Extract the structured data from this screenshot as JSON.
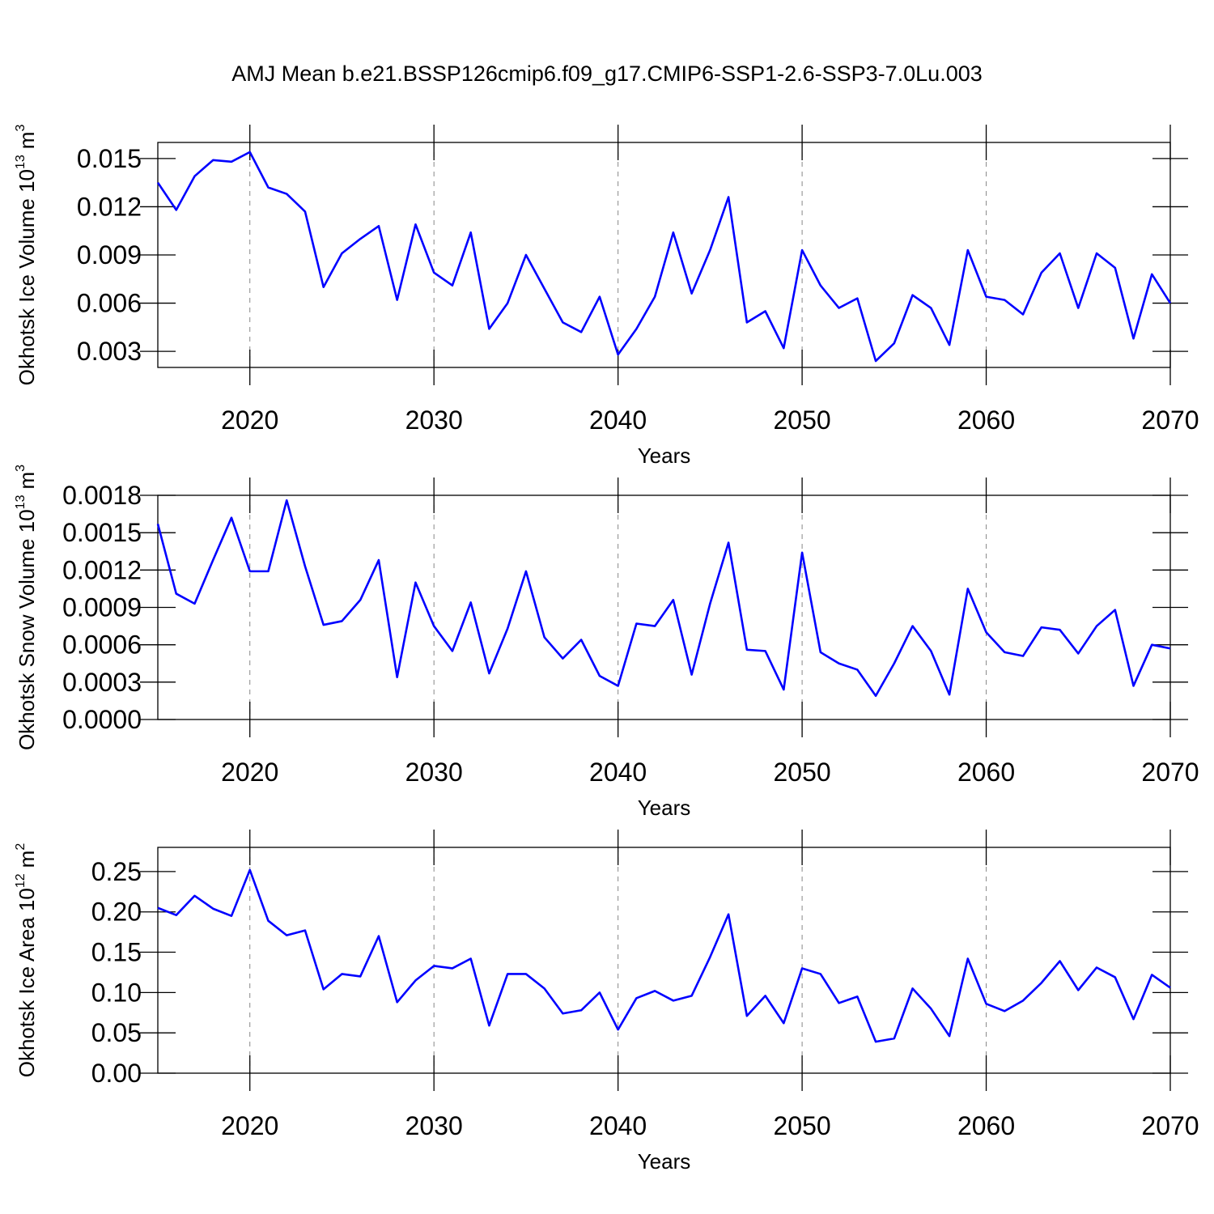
{
  "title": "AMJ Mean b.e21.BSSP126cmip6.f09_g17.CMIP6-SSP1-2.6-SSP3-7.0Lu.003",
  "chart_data": [
    {
      "type": "line",
      "ylabel": {
        "text": "Okhotsk Ice Volume 10",
        "exponent": "13",
        "unit": "m",
        "unit_exponent": "3"
      },
      "xlabel": "Years",
      "x": [
        2015,
        2016,
        2017,
        2018,
        2019,
        2020,
        2021,
        2022,
        2023,
        2024,
        2025,
        2026,
        2027,
        2028,
        2029,
        2030,
        2031,
        2032,
        2033,
        2034,
        2035,
        2036,
        2037,
        2038,
        2039,
        2040,
        2041,
        2042,
        2043,
        2044,
        2045,
        2046,
        2047,
        2048,
        2049,
        2050,
        2051,
        2052,
        2053,
        2054,
        2055,
        2056,
        2057,
        2058,
        2059,
        2060,
        2061,
        2062,
        2063,
        2064,
        2065,
        2066,
        2067,
        2068,
        2069,
        2070
      ],
      "values": [
        0.0135,
        0.0118,
        0.0139,
        0.0149,
        0.0148,
        0.0154,
        0.0132,
        0.0128,
        0.0117,
        0.007,
        0.0091,
        0.01,
        0.0108,
        0.0062,
        0.0109,
        0.0079,
        0.0071,
        0.0104,
        0.0044,
        0.006,
        0.009,
        0.0069,
        0.0048,
        0.0042,
        0.0064,
        0.0028,
        0.0044,
        0.0064,
        0.0104,
        0.0066,
        0.0093,
        0.0126,
        0.0048,
        0.0055,
        0.0032,
        0.0093,
        0.0071,
        0.0057,
        0.0063,
        0.0024,
        0.0035,
        0.0065,
        0.0057,
        0.0034,
        0.0093,
        0.0064,
        0.0062,
        0.0053,
        0.0079,
        0.0091,
        0.0057,
        0.0091,
        0.0082,
        0.0038,
        0.0078,
        0.006
      ],
      "color": "#0000ff",
      "xlim": [
        2015,
        2070
      ],
      "xticks": [
        2020,
        2030,
        2040,
        2050,
        2060,
        2070
      ],
      "ylim": [
        0.002,
        0.016
      ],
      "yticks": [
        0.003,
        0.006,
        0.009,
        0.012,
        0.015
      ],
      "grid": true
    },
    {
      "type": "line",
      "ylabel": {
        "text": "Okhotsk Snow Volume 10",
        "exponent": "13",
        "unit": "m",
        "unit_exponent": "3"
      },
      "xlabel": "Years",
      "x": [
        2015,
        2016,
        2017,
        2018,
        2019,
        2020,
        2021,
        2022,
        2023,
        2024,
        2025,
        2026,
        2027,
        2028,
        2029,
        2030,
        2031,
        2032,
        2033,
        2034,
        2035,
        2036,
        2037,
        2038,
        2039,
        2040,
        2041,
        2042,
        2043,
        2044,
        2045,
        2046,
        2047,
        2048,
        2049,
        2050,
        2051,
        2052,
        2053,
        2054,
        2055,
        2056,
        2057,
        2058,
        2059,
        2060,
        2061,
        2062,
        2063,
        2064,
        2065,
        2066,
        2067,
        2068,
        2069,
        2070
      ],
      "values": [
        0.00157,
        0.00101,
        0.00093,
        0.00128,
        0.00162,
        0.00119,
        0.00119,
        0.00176,
        0.00123,
        0.00076,
        0.00079,
        0.00096,
        0.00128,
        0.00034,
        0.0011,
        0.00075,
        0.00055,
        0.00094,
        0.00037,
        0.00073,
        0.00119,
        0.00066,
        0.00049,
        0.00064,
        0.00035,
        0.00027,
        0.00077,
        0.00075,
        0.00096,
        0.00036,
        0.00093,
        0.00142,
        0.00056,
        0.00055,
        0.00024,
        0.00134,
        0.00054,
        0.00045,
        0.0004,
        0.00019,
        0.00045,
        0.00075,
        0.00055,
        0.0002,
        0.00105,
        0.0007,
        0.00054,
        0.00051,
        0.00074,
        0.00072,
        0.00053,
        0.00075,
        0.00088,
        0.00027,
        0.0006,
        0.00057
      ],
      "color": "#0000ff",
      "xlim": [
        2015,
        2070
      ],
      "xticks": [
        2020,
        2030,
        2040,
        2050,
        2060,
        2070
      ],
      "ylim": [
        0,
        0.0018
      ],
      "yticks": [
        {
          "value": 0,
          "label": "0.0000"
        },
        0.0003,
        0.0006,
        0.0009,
        0.0012,
        0.0015,
        0.0018
      ],
      "grid": true
    },
    {
      "type": "line",
      "ylabel": {
        "text": "Okhotsk Ice Area 10",
        "exponent": "12",
        "unit": "m",
        "unit_exponent": "2"
      },
      "xlabel": "Years",
      "x": [
        2015,
        2016,
        2017,
        2018,
        2019,
        2020,
        2021,
        2022,
        2023,
        2024,
        2025,
        2026,
        2027,
        2028,
        2029,
        2030,
        2031,
        2032,
        2033,
        2034,
        2035,
        2036,
        2037,
        2038,
        2039,
        2040,
        2041,
        2042,
        2043,
        2044,
        2045,
        2046,
        2047,
        2048,
        2049,
        2050,
        2051,
        2052,
        2053,
        2054,
        2055,
        2056,
        2057,
        2058,
        2059,
        2060,
        2061,
        2062,
        2063,
        2064,
        2065,
        2066,
        2067,
        2068,
        2069,
        2070
      ],
      "values": [
        0.205,
        0.196,
        0.22,
        0.204,
        0.195,
        0.252,
        0.189,
        0.171,
        0.177,
        0.104,
        0.123,
        0.12,
        0.17,
        0.088,
        0.115,
        0.133,
        0.13,
        0.142,
        0.059,
        0.123,
        0.123,
        0.105,
        0.074,
        0.078,
        0.1,
        0.054,
        0.093,
        0.102,
        0.09,
        0.096,
        0.144,
        0.197,
        0.071,
        0.096,
        0.062,
        0.13,
        0.123,
        0.087,
        0.095,
        0.039,
        0.043,
        0.105,
        0.08,
        0.046,
        0.142,
        0.086,
        0.077,
        0.09,
        0.112,
        0.139,
        0.103,
        0.131,
        0.119,
        0.067,
        0.122,
        0.106
      ],
      "color": "#0000ff",
      "xlim": [
        2015,
        2070
      ],
      "xticks": [
        2020,
        2030,
        2040,
        2050,
        2060,
        2070
      ],
      "ylim": [
        0,
        0.28
      ],
      "yticks": [
        {
          "value": 0,
          "label": "0.00"
        },
        0.05,
        {
          "value": 0.1,
          "label": "0.10"
        },
        0.15,
        {
          "value": 0.2,
          "label": "0.20"
        },
        0.25
      ],
      "grid": true
    }
  ]
}
